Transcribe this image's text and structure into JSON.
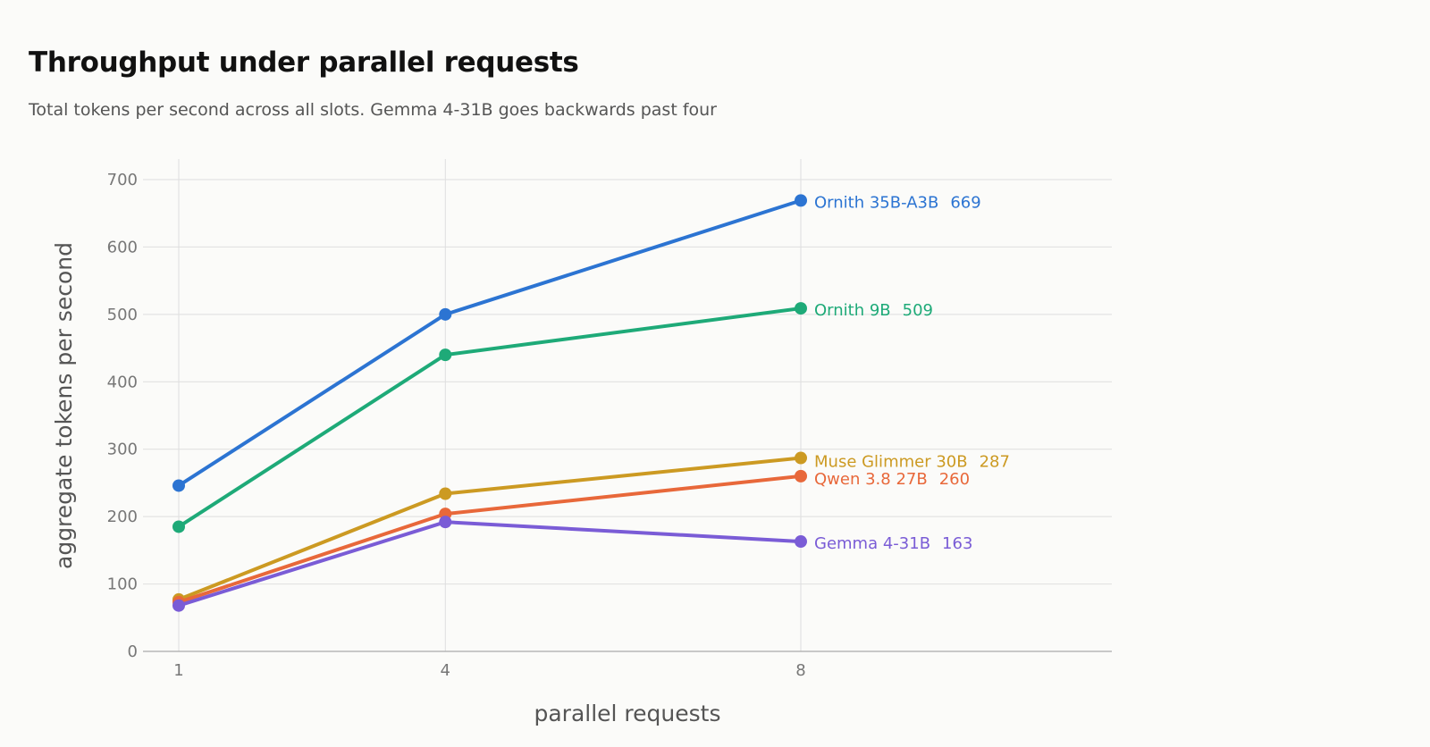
{
  "header": {
    "title": "Throughput under parallel requests",
    "subtitle": "Total tokens per second across all slots. Gemma 4-31B goes backwards past four"
  },
  "chart_data": {
    "type": "line",
    "x": [
      1,
      4,
      8
    ],
    "xlabel": "parallel requests",
    "ylabel": "aggregate tokens per second",
    "ylim": [
      0,
      700
    ],
    "yticks": [
      0,
      100,
      200,
      300,
      400,
      500,
      600,
      700
    ],
    "xticks": [
      1,
      4,
      8
    ],
    "grid": true,
    "legend": "end-of-line labels",
    "series": [
      {
        "name": "Ornith 35B-A3B",
        "values": [
          246,
          500,
          669
        ],
        "end_label": "669",
        "color": "#2c74d2"
      },
      {
        "name": "Ornith 9B",
        "values": [
          185,
          440,
          509
        ],
        "end_label": "509",
        "color": "#1eaa78"
      },
      {
        "name": "Muse Glimmer 30B",
        "values": [
          77,
          234,
          287
        ],
        "end_label": "287",
        "color": "#cc9a22"
      },
      {
        "name": "Qwen 3.8 27B",
        "values": [
          73,
          204,
          260
        ],
        "end_label": "260",
        "color": "#e8683a"
      },
      {
        "name": "Gemma 4-31B",
        "values": [
          68,
          192,
          163
        ],
        "end_label": "163",
        "color": "#7a5cd6"
      }
    ]
  }
}
